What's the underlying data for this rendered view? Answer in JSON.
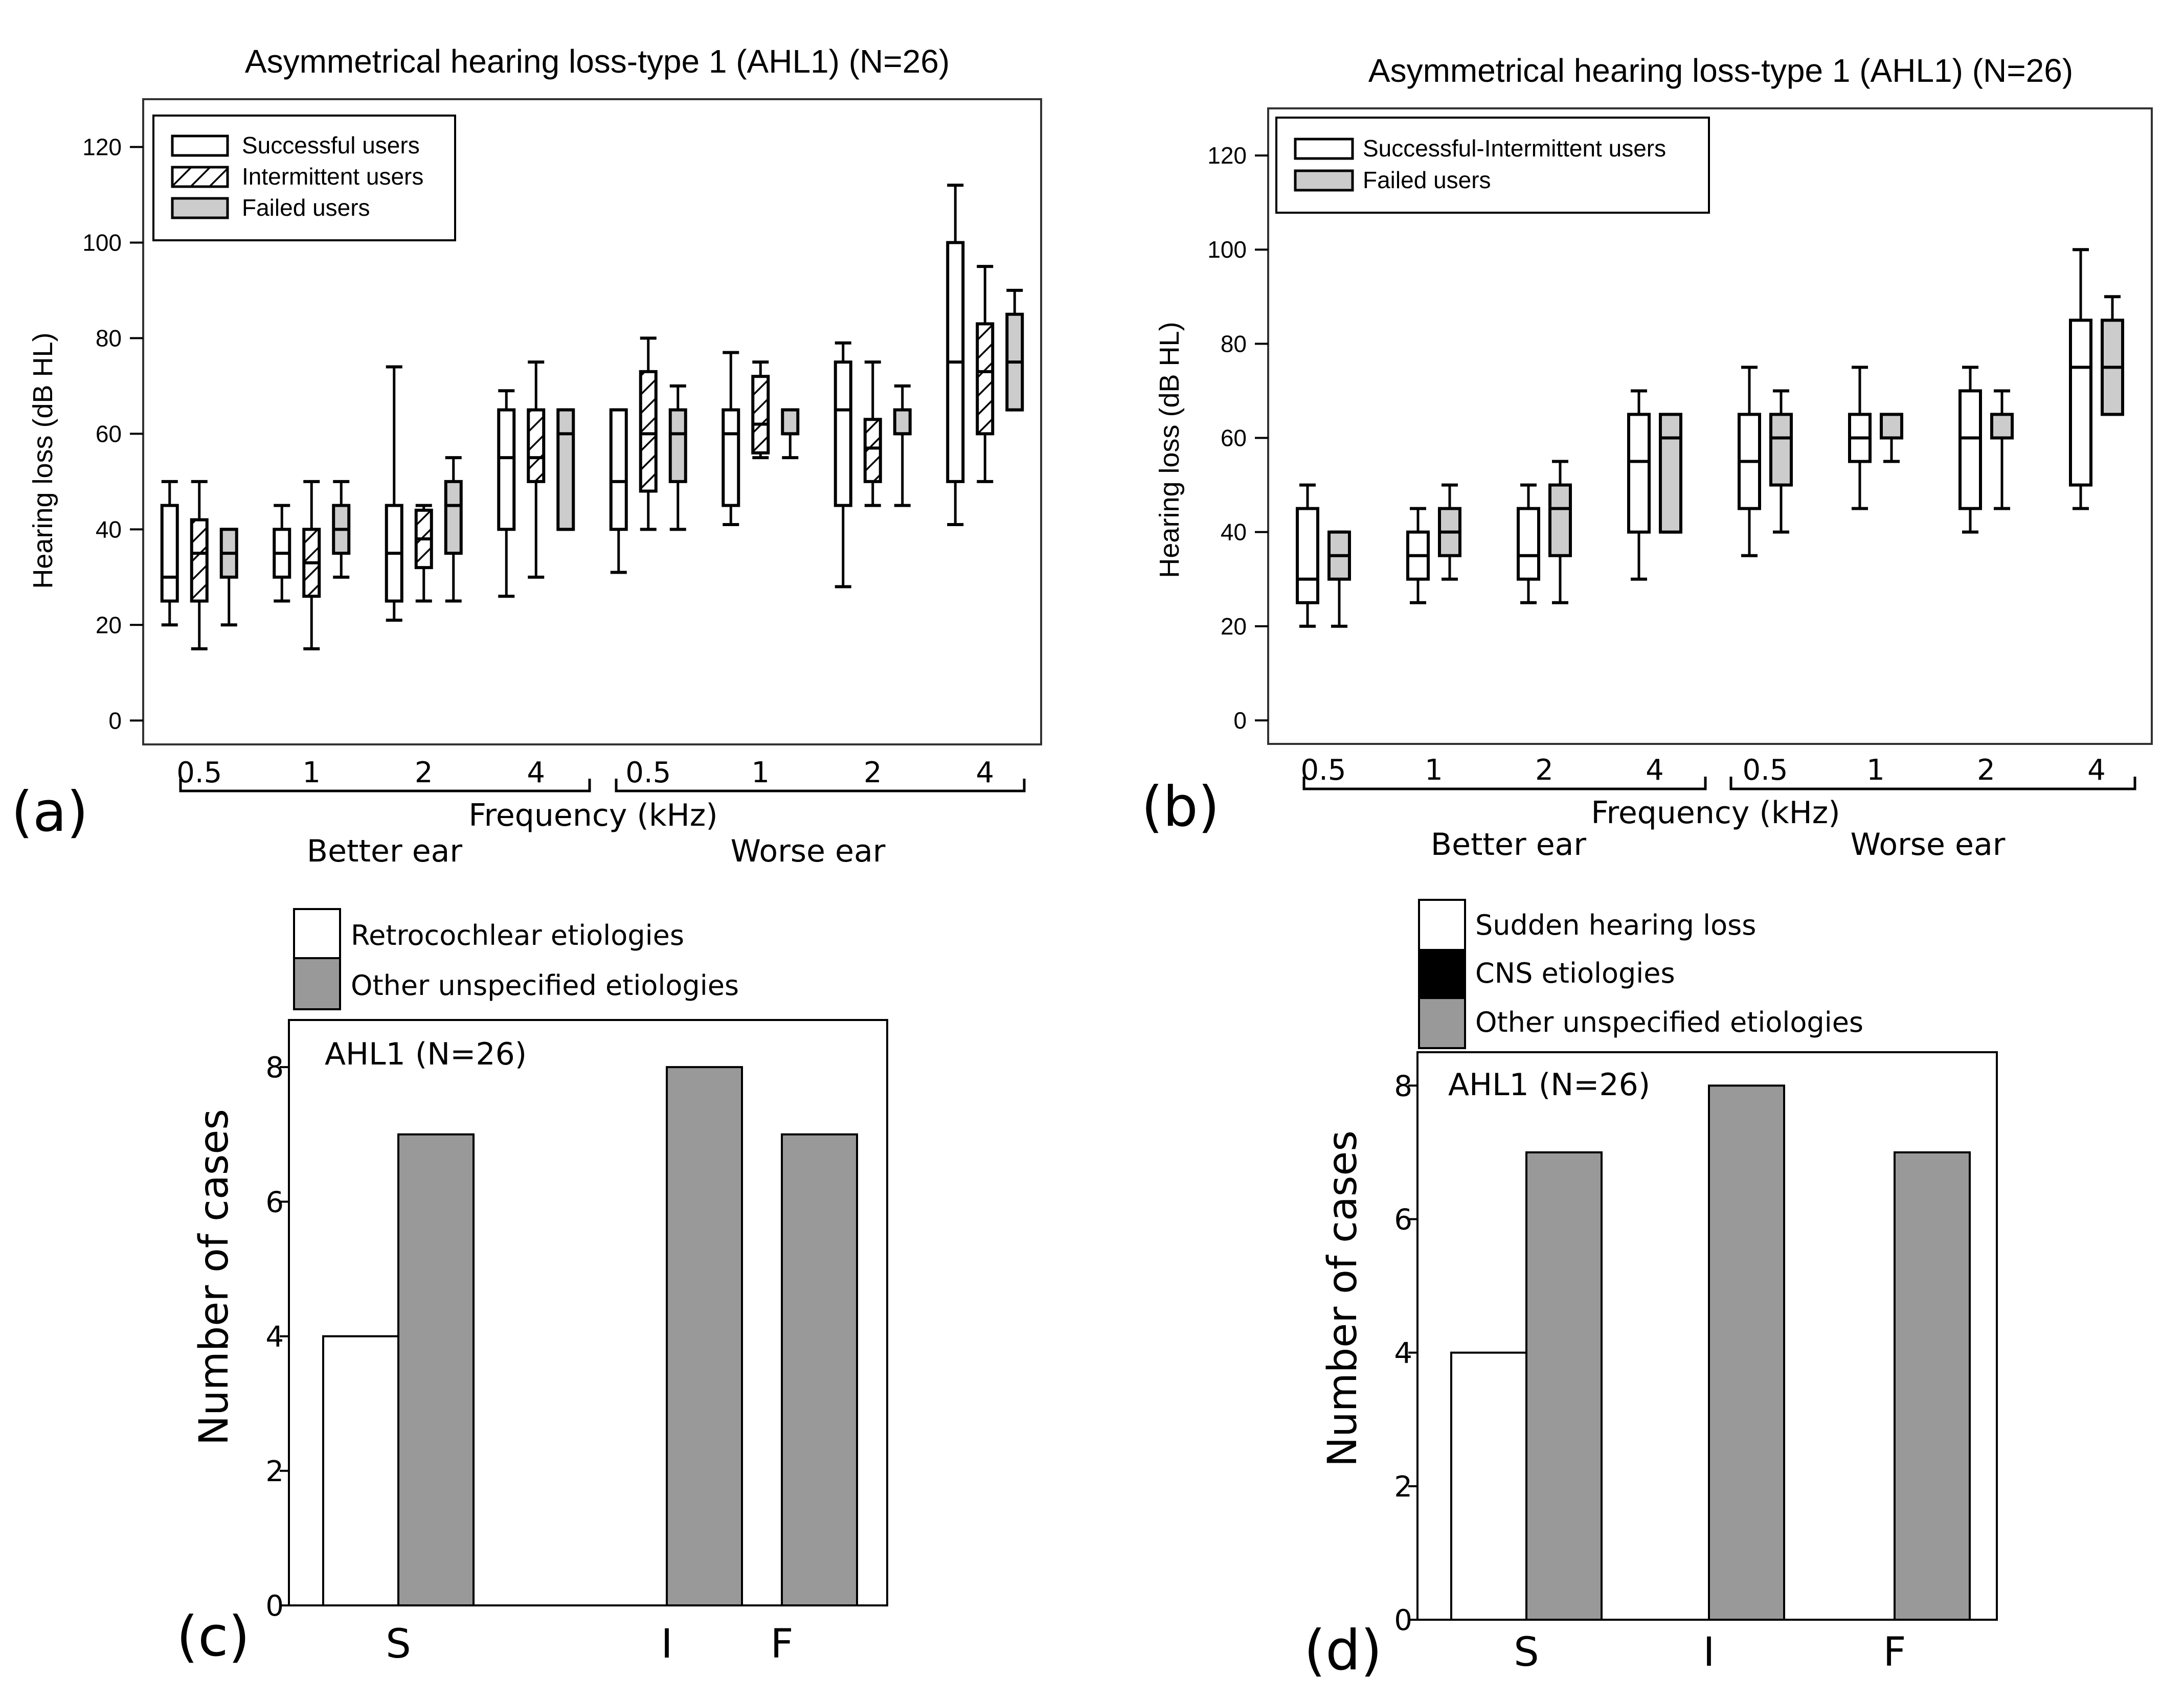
{
  "colors": {
    "white": "#ffffff",
    "gray": "#999999",
    "black": "#000000",
    "frame": "#333333"
  },
  "panels": {
    "a": {
      "label": "(a)"
    },
    "b": {
      "label": "(b)"
    },
    "c": {
      "label": "(c)"
    },
    "d": {
      "label": "(d)"
    }
  },
  "chart_data": [
    {
      "id": "a",
      "type": "box",
      "title": "Asymmetrical hearing loss-type 1 (AHL1) (N=26)",
      "ylabel": "Hearing loss (dB HL)",
      "xlabel": "Frequency (kHz)",
      "ylim": [
        -5,
        130
      ],
      "yticks": [
        0,
        20,
        40,
        60,
        80,
        100,
        120
      ],
      "groups": [
        "Better ear",
        "Worse ear"
      ],
      "categories": [
        "0.5",
        "1",
        "2",
        "4",
        "0.5",
        "1",
        "2",
        "4"
      ],
      "legend": [
        {
          "name": "Successful users",
          "style": "white"
        },
        {
          "name": "Intermittent users",
          "style": "hatch"
        },
        {
          "name": "Failed users",
          "style": "gray"
        }
      ],
      "series": [
        {
          "name": "Successful users",
          "style": "white",
          "boxes": [
            {
              "min": 20,
              "q1": 25,
              "median": 30,
              "q3": 45,
              "max": 50
            },
            {
              "min": 25,
              "q1": 30,
              "median": 35,
              "q3": 40,
              "max": 45
            },
            {
              "min": 21,
              "q1": 25,
              "median": 35,
              "q3": 45,
              "max": 74
            },
            {
              "min": 26,
              "q1": 40,
              "median": 55,
              "q3": 65,
              "max": 69
            },
            {
              "min": 31,
              "q1": 40,
              "median": 50,
              "q3": 65,
              "max": 65
            },
            {
              "min": 41,
              "q1": 45,
              "median": 60,
              "q3": 65,
              "max": 77
            },
            {
              "min": 28,
              "q1": 45,
              "median": 65,
              "q3": 75,
              "max": 79
            },
            {
              "min": 41,
              "q1": 50,
              "median": 75,
              "q3": 100,
              "max": 112
            }
          ]
        },
        {
          "name": "Intermittent users",
          "style": "hatch",
          "boxes": [
            {
              "min": 15,
              "q1": 25,
              "median": 35,
              "q3": 42,
              "max": 50
            },
            {
              "min": 15,
              "q1": 26,
              "median": 33,
              "q3": 40,
              "max": 50
            },
            {
              "min": 25,
              "q1": 32,
              "median": 38,
              "q3": 44,
              "max": 45
            },
            {
              "min": 30,
              "q1": 50,
              "median": 55,
              "q3": 65,
              "max": 75
            },
            {
              "min": 40,
              "q1": 48,
              "median": 60,
              "q3": 73,
              "max": 80
            },
            {
              "min": 55,
              "q1": 56,
              "median": 62,
              "q3": 72,
              "max": 75
            },
            {
              "min": 45,
              "q1": 50,
              "median": 57,
              "q3": 63,
              "max": 75
            },
            {
              "min": 50,
              "q1": 60,
              "median": 73,
              "q3": 83,
              "max": 95
            }
          ]
        },
        {
          "name": "Failed users",
          "style": "gray",
          "boxes": [
            {
              "min": 20,
              "q1": 30,
              "median": 35,
              "q3": 40,
              "max": 40
            },
            {
              "min": 30,
              "q1": 35,
              "median": 40,
              "q3": 45,
              "max": 50
            },
            {
              "min": 25,
              "q1": 35,
              "median": 45,
              "q3": 50,
              "max": 55
            },
            {
              "min": 40,
              "q1": 40,
              "median": 60,
              "q3": 65,
              "max": 65
            },
            {
              "min": 40,
              "q1": 50,
              "median": 60,
              "q3": 65,
              "max": 70
            },
            {
              "min": 55,
              "q1": 60,
              "median": 60,
              "q3": 65,
              "max": 65
            },
            {
              "min": 45,
              "q1": 60,
              "median": 60,
              "q3": 65,
              "max": 70
            },
            {
              "min": 65,
              "q1": 65,
              "median": 75,
              "q3": 85,
              "max": 90
            }
          ]
        }
      ]
    },
    {
      "id": "b",
      "type": "box",
      "title": "Asymmetrical hearing loss-type 1 (AHL1) (N=26)",
      "ylabel": "Hearing loss (dB HL)",
      "xlabel": "Frequency (kHz)",
      "ylim": [
        -5,
        130
      ],
      "yticks": [
        0,
        20,
        40,
        60,
        80,
        100,
        120
      ],
      "groups": [
        "Better ear",
        "Worse ear"
      ],
      "categories": [
        "0.5",
        "1",
        "2",
        "4",
        "0.5",
        "1",
        "2",
        "4"
      ],
      "legend": [
        {
          "name": "Successful-Intermittent users",
          "style": "white"
        },
        {
          "name": "Failed users",
          "style": "gray"
        }
      ],
      "series": [
        {
          "name": "Successful-Intermittent users",
          "style": "white",
          "boxes": [
            {
              "min": 20,
              "q1": 25,
              "median": 30,
              "q3": 45,
              "max": 50
            },
            {
              "min": 25,
              "q1": 30,
              "median": 35,
              "q3": 40,
              "max": 45
            },
            {
              "min": 25,
              "q1": 30,
              "median": 35,
              "q3": 45,
              "max": 50
            },
            {
              "min": 30,
              "q1": 40,
              "median": 55,
              "q3": 65,
              "max": 70
            },
            {
              "min": 35,
              "q1": 45,
              "median": 55,
              "q3": 65,
              "max": 75
            },
            {
              "min": 45,
              "q1": 55,
              "median": 60,
              "q3": 65,
              "max": 75
            },
            {
              "min": 40,
              "q1": 45,
              "median": 60,
              "q3": 70,
              "max": 75
            },
            {
              "min": 45,
              "q1": 50,
              "median": 75,
              "q3": 85,
              "max": 100
            }
          ]
        },
        {
          "name": "Failed users",
          "style": "gray",
          "boxes": [
            {
              "min": 20,
              "q1": 30,
              "median": 35,
              "q3": 40,
              "max": 40
            },
            {
              "min": 30,
              "q1": 35,
              "median": 40,
              "q3": 45,
              "max": 50
            },
            {
              "min": 25,
              "q1": 35,
              "median": 45,
              "q3": 50,
              "max": 55
            },
            {
              "min": 40,
              "q1": 40,
              "median": 60,
              "q3": 65,
              "max": 65
            },
            {
              "min": 40,
              "q1": 50,
              "median": 60,
              "q3": 65,
              "max": 70
            },
            {
              "min": 55,
              "q1": 60,
              "median": 60,
              "q3": 65,
              "max": 65
            },
            {
              "min": 45,
              "q1": 60,
              "median": 60,
              "q3": 65,
              "max": 70
            },
            {
              "min": 65,
              "q1": 65,
              "median": 75,
              "q3": 85,
              "max": 90
            }
          ]
        }
      ]
    },
    {
      "id": "c",
      "type": "bar",
      "annotation": "AHL1 (N=26)",
      "ylabel": "Number of cases",
      "ylim": [
        0,
        8.7
      ],
      "yticks": [
        0,
        2,
        4,
        6,
        8
      ],
      "categories": [
        "S",
        "I",
        "F"
      ],
      "legend": [
        {
          "name": "Retrocochlear etiologies",
          "color": "#ffffff"
        },
        {
          "name": "Other unspecified etiologies",
          "color": "#999999"
        }
      ],
      "series": [
        {
          "name": "Retrocochlear etiologies",
          "color": "#ffffff",
          "values": [
            4,
            0,
            0
          ]
        },
        {
          "name": "Other unspecified etiologies",
          "color": "#999999",
          "values": [
            7,
            8,
            7
          ]
        }
      ]
    },
    {
      "id": "d",
      "type": "bar",
      "annotation": "AHL1 (N=26)",
      "ylabel": "Number of cases",
      "ylim": [
        0,
        8.5
      ],
      "yticks": [
        0,
        2,
        4,
        6,
        8
      ],
      "categories": [
        "S",
        "I",
        "F"
      ],
      "legend": [
        {
          "name": "Sudden hearing loss",
          "color": "#ffffff"
        },
        {
          "name": "CNS etiologies",
          "color": "#000000"
        },
        {
          "name": "Other unspecified etiologies",
          "color": "#999999"
        }
      ],
      "series": [
        {
          "name": "Sudden hearing loss",
          "color": "#ffffff",
          "values": [
            4,
            0,
            0
          ]
        },
        {
          "name": "CNS etiologies",
          "color": "#000000",
          "values": [
            0,
            0,
            0
          ]
        },
        {
          "name": "Other unspecified etiologies",
          "color": "#999999",
          "values": [
            7,
            8,
            7
          ]
        }
      ]
    }
  ]
}
